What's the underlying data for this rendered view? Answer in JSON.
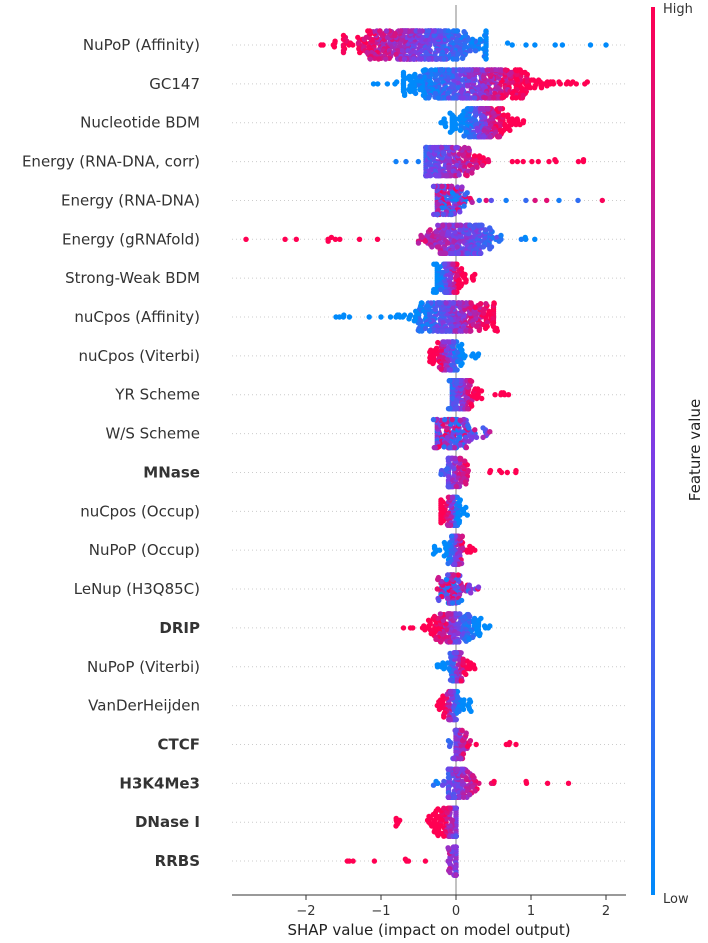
{
  "chart_data": {
    "type": "scatter",
    "subtype": "shap-beeswarm",
    "xlabel": "SHAP value (impact on model output)",
    "xlim": [
      -3.0,
      2.28
    ],
    "xticks": [
      -2,
      -1,
      0,
      1,
      2
    ],
    "xtick_labels": [
      "−2",
      "−1",
      "0",
      "1",
      "2"
    ],
    "colorbar": {
      "label": "Feature value",
      "high": "High",
      "low": "Low",
      "colors": [
        "#008afb",
        "#ff0052"
      ]
    },
    "colors": {
      "low": "#008afb",
      "high": "#ff0052",
      "zero_line": "#999999",
      "axis": "#333333"
    },
    "features": [
      {
        "name": "NuPoP (Affinity)",
        "bold": false,
        "min": -1.8,
        "max": 2.0,
        "core": [
          -1.5,
          0.4
        ],
        "center": -0.5,
        "trend": "neg"
      },
      {
        "name": "GC147",
        "bold": false,
        "min": -1.1,
        "max": 1.75,
        "core": [
          -0.7,
          1.3
        ],
        "center": 0.2,
        "trend": "pos"
      },
      {
        "name": "Nucleotide BDM",
        "bold": false,
        "min": -0.2,
        "max": 0.9,
        "core": [
          -0.05,
          0.8
        ],
        "center": 0.35,
        "trend": "pos"
      },
      {
        "name": "Energy (RNA-DNA, corr)",
        "bold": false,
        "min": -0.8,
        "max": 1.7,
        "core": [
          -0.4,
          0.7
        ],
        "center": -0.15,
        "trend": "pos"
      },
      {
        "name": "Energy (RNA-DNA)",
        "bold": false,
        "min": -0.3,
        "max": 1.95,
        "core": [
          -0.25,
          0.4
        ],
        "center": -0.15,
        "trend": "mixed"
      },
      {
        "name": "Energy (gRNAfold)",
        "bold": false,
        "min": -2.8,
        "max": 1.05,
        "core": [
          -0.5,
          0.6
        ],
        "center": 0.05,
        "trend": "neg"
      },
      {
        "name": "Strong-Weak BDM",
        "bold": false,
        "min": -0.3,
        "max": 0.25,
        "core": [
          -0.25,
          0.2
        ],
        "center": -0.1,
        "trend": "pos"
      },
      {
        "name": "nuCpos (Affinity)",
        "bold": false,
        "min": -1.6,
        "max": 0.55,
        "core": [
          -0.8,
          0.5
        ],
        "center": -0.05,
        "trend": "pos"
      },
      {
        "name": "nuCpos (Viterbi)",
        "bold": false,
        "min": -0.35,
        "max": 0.3,
        "core": [
          -0.3,
          0.15
        ],
        "center": -0.1,
        "trend": "neg"
      },
      {
        "name": "YR Scheme",
        "bold": false,
        "min": -0.1,
        "max": 0.7,
        "core": [
          -0.05,
          0.5
        ],
        "center": 0.05,
        "trend": "pos"
      },
      {
        "name": "W/S Scheme",
        "bold": false,
        "min": -0.3,
        "max": 0.45,
        "core": [
          -0.25,
          0.35
        ],
        "center": -0.05,
        "trend": "mixed"
      },
      {
        "name": "MNase",
        "bold": true,
        "min": -0.2,
        "max": 0.8,
        "core": [
          -0.1,
          0.4
        ],
        "center": -0.05,
        "trend": "pos"
      },
      {
        "name": "nuCpos (Occup)",
        "bold": false,
        "min": -0.2,
        "max": 0.15,
        "core": [
          -0.2,
          0.1
        ],
        "center": -0.05,
        "trend": "neg"
      },
      {
        "name": "NuPoP (Occup)",
        "bold": false,
        "min": -0.3,
        "max": 0.25,
        "core": [
          -0.15,
          0.15
        ],
        "center": 0.0,
        "trend": "pos"
      },
      {
        "name": "LeNup (H3Q85C)",
        "bold": false,
        "min": -0.25,
        "max": 0.3,
        "core": [
          -0.2,
          0.15
        ],
        "center": -0.05,
        "trend": "mixed"
      },
      {
        "name": "DRIP",
        "bold": true,
        "min": -0.7,
        "max": 0.45,
        "core": [
          -0.4,
          0.3
        ],
        "center": 0.0,
        "trend": "neg"
      },
      {
        "name": "NuPoP (Viterbi)",
        "bold": false,
        "min": -0.25,
        "max": 0.25,
        "core": [
          -0.15,
          0.15
        ],
        "center": 0.0,
        "trend": "pos"
      },
      {
        "name": "VanDerHeijden",
        "bold": false,
        "min": -0.25,
        "max": 0.2,
        "core": [
          -0.2,
          0.1
        ],
        "center": -0.05,
        "trend": "neg"
      },
      {
        "name": "CTCF",
        "bold": true,
        "min": -0.1,
        "max": 0.8,
        "core": [
          0.0,
          0.4
        ],
        "center": 0.0,
        "trend": "pos"
      },
      {
        "name": "H3K4Me3",
        "bold": true,
        "min": -0.3,
        "max": 1.5,
        "core": [
          -0.1,
          0.45
        ],
        "center": 0.0,
        "trend": "pos"
      },
      {
        "name": "DNase I",
        "bold": true,
        "min": -0.8,
        "max": 0.0,
        "core": [
          -0.75,
          0.0
        ],
        "center": 0.0,
        "trend": "neg"
      },
      {
        "name": "RRBS",
        "bold": true,
        "min": -1.45,
        "max": 0.0,
        "core": [
          -0.25,
          0.0
        ],
        "center": 0.0,
        "trend": "neg"
      }
    ]
  }
}
